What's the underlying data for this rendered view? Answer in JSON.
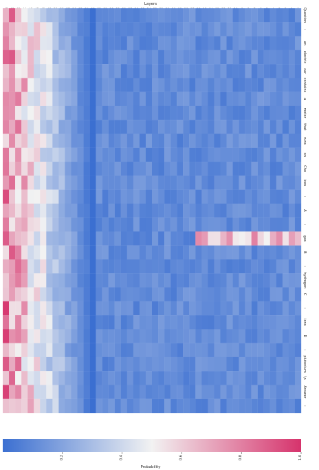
{
  "chart_data": {
    "type": "heatmap",
    "title": "",
    "xlabel": "Layers",
    "ylabel": "",
    "x_tick_labels": [
      "47",
      "46",
      "45",
      "44",
      "43",
      "42",
      "41",
      "40",
      "39",
      "38",
      "37",
      "36",
      "35",
      "34",
      "33",
      "32",
      "31",
      "30",
      "29",
      "28",
      "27",
      "26",
      "25",
      "24",
      "23",
      "22",
      "21",
      "20",
      "19",
      "18",
      "17",
      "16",
      "15",
      "14",
      "13",
      "12",
      "11",
      "10",
      "9",
      "8",
      "7",
      "6",
      "5",
      "4",
      "3",
      "2",
      "1",
      "0"
    ],
    "y_tick_labels": [
      "Question",
      ":",
      "an",
      "electric",
      "car",
      "contains",
      "a",
      "motor",
      "that",
      "runs",
      "on",
      "Cho",
      "ices",
      ":",
      "A",
      ":",
      "gas",
      "B",
      ":",
      "hydrogen",
      "C",
      ":",
      "ions",
      "D",
      ":",
      "plutonium",
      "\\n",
      "Answer",
      ":"
    ],
    "colorbar": {
      "label": "Probability",
      "range": [
        0,
        1.0
      ],
      "ticks": [
        0.2,
        0.4,
        0.6,
        0.8,
        1.0
      ],
      "colors": [
        "#3b6fd1",
        "#f2f2f2",
        "#d6336c"
      ]
    },
    "grid": false,
    "legend": "none"
  }
}
